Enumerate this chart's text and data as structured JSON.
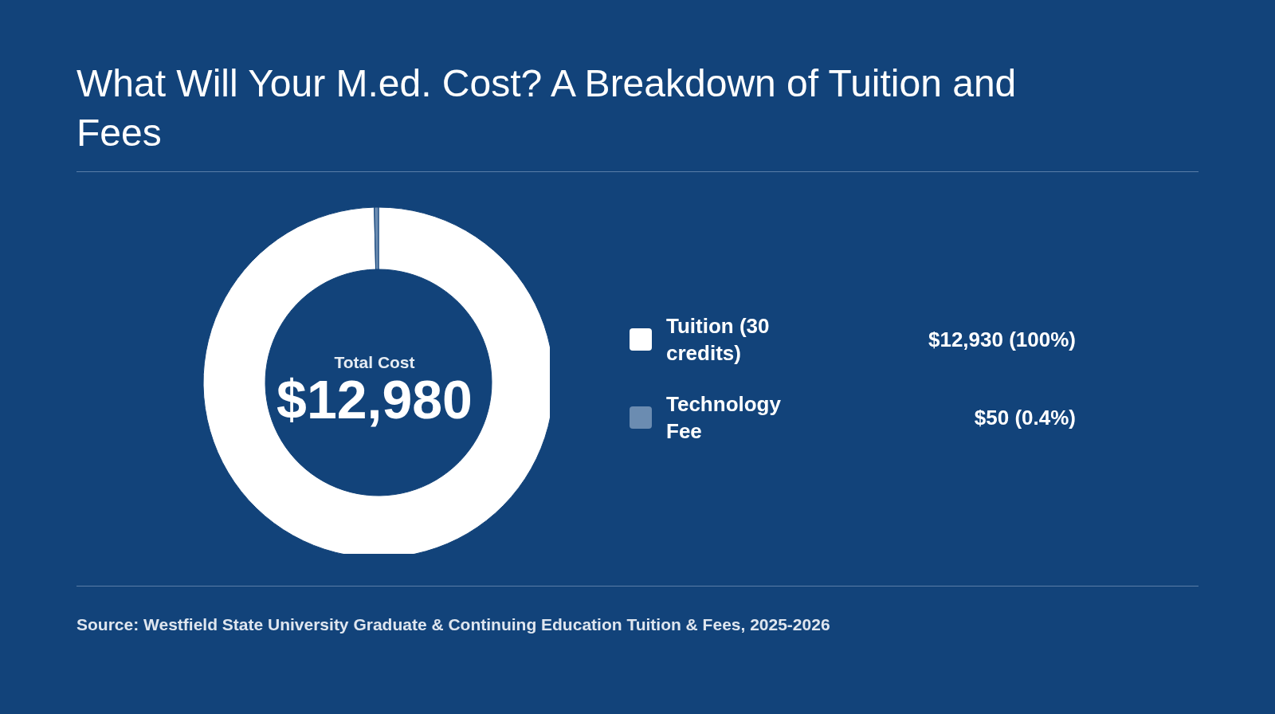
{
  "chart_data": {
    "type": "donut",
    "title": "What Will Your M.ed. Cost? A Breakdown of Tuition and Fees",
    "categories": [
      "Tuition (30 credits)",
      "Technology Fee"
    ],
    "values": [
      12930,
      50
    ],
    "colors": [
      "#ffffff",
      "#6b8cb1"
    ],
    "value_labels": [
      "$12,930 (100%)",
      "$50 (0.4%)"
    ],
    "legend": "right",
    "annotations": [
      "Total Cost",
      "$12,980",
      "Source: Westfield State University Graduate & Continuing Education Tuition & Fees, 2025-2026"
    ]
  }
}
